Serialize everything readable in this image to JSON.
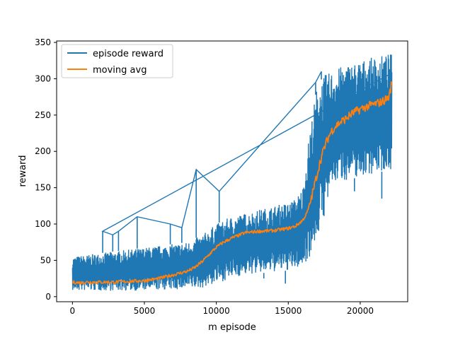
{
  "chart_data": {
    "type": "line",
    "title": "",
    "xlabel": "m episode",
    "ylabel": "reward",
    "xlim": [
      -1100,
      23300
    ],
    "ylim": [
      -7,
      352
    ],
    "x_ticks": [
      0,
      5000,
      10000,
      15000,
      20000
    ],
    "x_tick_labels": [
      "0",
      "5000",
      "10000",
      "15000",
      "20000"
    ],
    "y_ticks": [
      0,
      50,
      100,
      150,
      200,
      250,
      300,
      350
    ],
    "y_tick_labels": [
      "0",
      "50",
      "100",
      "150",
      "200",
      "250",
      "300",
      "350"
    ],
    "grid": false,
    "legend_position": "top-left",
    "series": [
      {
        "name": "episode reward",
        "color": "#1f77b4",
        "style": "noisy-envelope",
        "x": [
          0,
          2000,
          4000,
          6000,
          8000,
          9000,
          10000,
          11000,
          12000,
          13000,
          14000,
          15000,
          15500,
          16000,
          16500,
          17000,
          17500,
          18000,
          18500,
          19000,
          20000,
          21000,
          22200
        ],
        "lower": [
          8,
          8,
          8,
          9,
          10,
          12,
          18,
          25,
          30,
          32,
          34,
          36,
          38,
          42,
          55,
          80,
          110,
          150,
          160,
          160,
          165,
          170,
          175
        ],
        "upper": [
          55,
          60,
          65,
          70,
          75,
          85,
          100,
          110,
          115,
          120,
          125,
          130,
          135,
          150,
          230,
          290,
          305,
          310,
          315,
          320,
          325,
          330,
          335
        ],
        "spikes": [
          {
            "x": 2100,
            "y": 90
          },
          {
            "x": 2800,
            "y": 85
          },
          {
            "x": 3200,
            "y": 90
          },
          {
            "x": 4500,
            "y": 110
          },
          {
            "x": 6800,
            "y": 100
          },
          {
            "x": 7600,
            "y": 95
          },
          {
            "x": 8600,
            "y": 175
          },
          {
            "x": 10200,
            "y": 145
          },
          {
            "x": 16900,
            "y": 295
          },
          {
            "x": 17300,
            "y": 310
          }
        ],
        "dips": [
          {
            "x": 13300,
            "y": 25
          },
          {
            "x": 14800,
            "y": 18
          },
          {
            "x": 16300,
            "y": 50
          },
          {
            "x": 19600,
            "y": 145
          },
          {
            "x": 21500,
            "y": 135
          }
        ]
      },
      {
        "name": "moving avg",
        "color": "#ff7f0e",
        "x": [
          0,
          500,
          1000,
          2000,
          3000,
          4000,
          5000,
          6000,
          7000,
          8000,
          8500,
          9000,
          9500,
          10000,
          10500,
          11000,
          11500,
          12000,
          13000,
          14000,
          15000,
          15500,
          16000,
          16300,
          16600,
          16900,
          17200,
          17500,
          17800,
          18000,
          18300,
          18600,
          19000,
          19300,
          19600,
          20000,
          20500,
          21000,
          21500,
          22000,
          22200
        ],
        "values": [
          20,
          19,
          20,
          20,
          20,
          21,
          22,
          25,
          30,
          35,
          40,
          48,
          58,
          68,
          75,
          80,
          84,
          88,
          90,
          91,
          94,
          97,
          105,
          115,
          135,
          160,
          185,
          205,
          220,
          228,
          235,
          240,
          245,
          250,
          254,
          258,
          262,
          265,
          268,
          275,
          295
        ]
      }
    ]
  }
}
